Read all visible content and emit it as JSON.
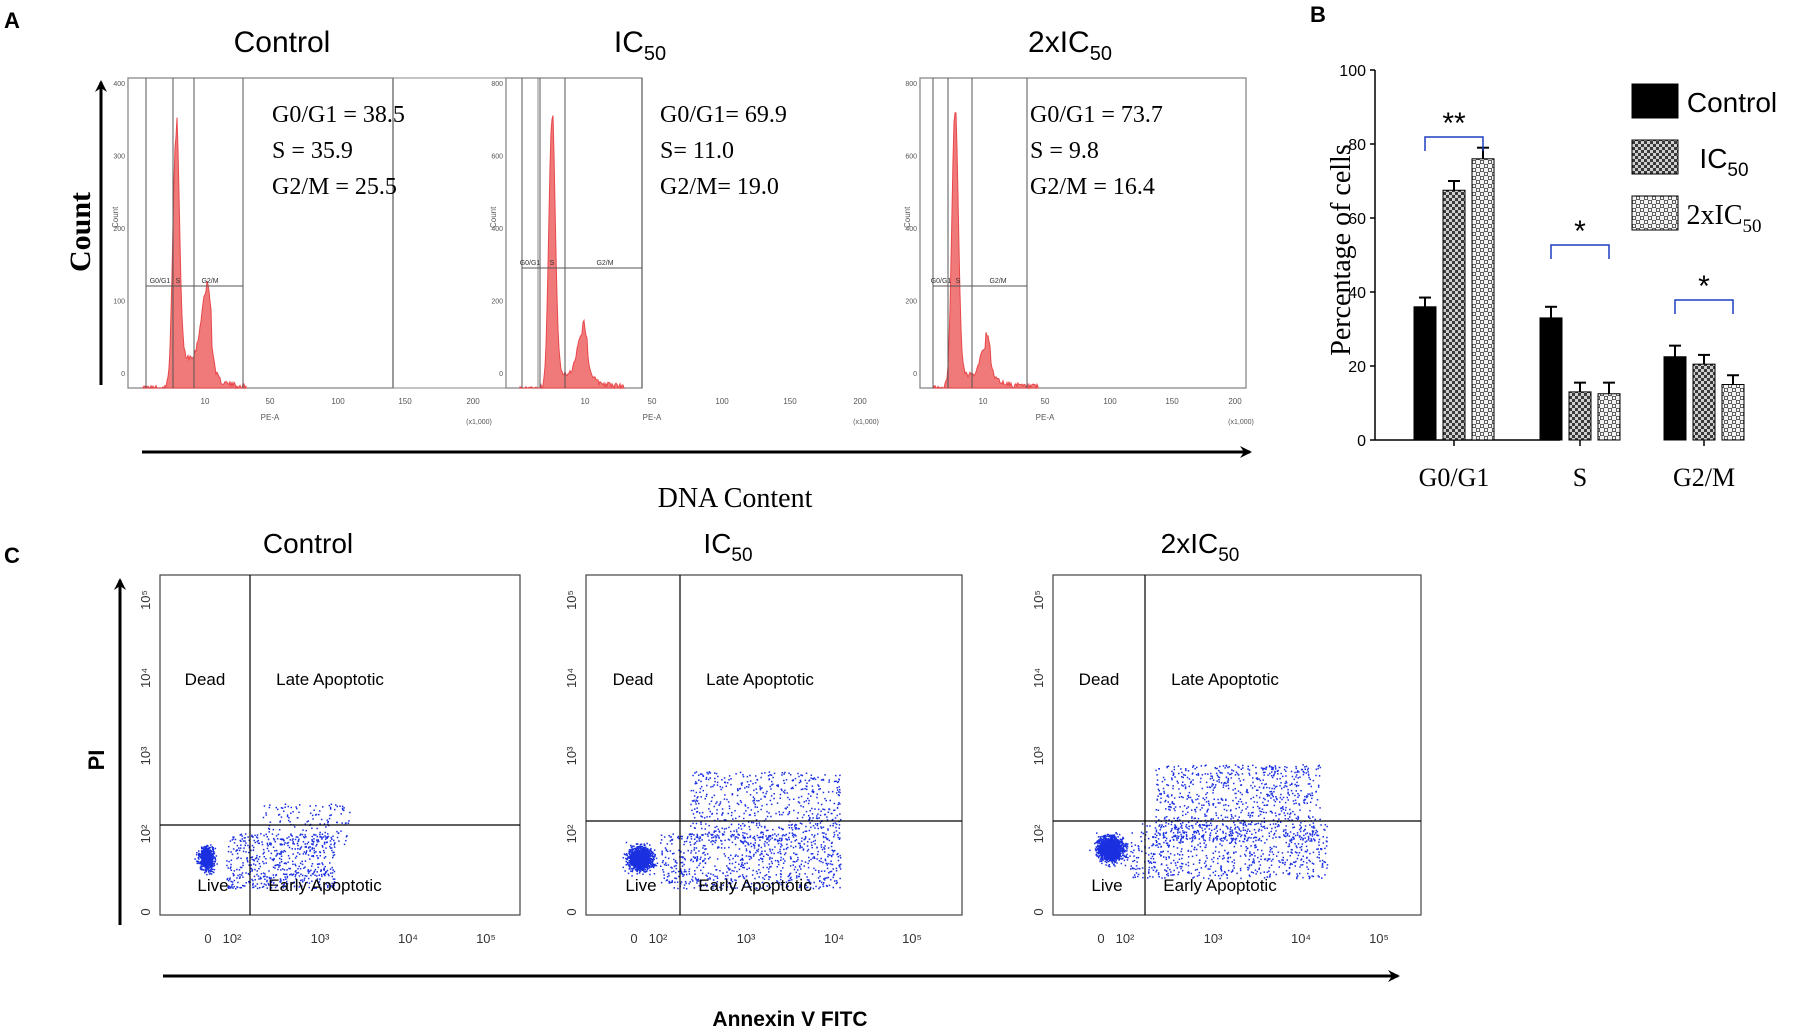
{
  "panels": {
    "a": "A",
    "b": "B",
    "c": "C"
  },
  "colors": {
    "hist": "#e8474a",
    "histFill": "#f07a7a",
    "dots": "#1a2fe0",
    "bar": "#000000",
    "sig": "#1f3fbf"
  },
  "cellcycle": {
    "ylabel": "Count",
    "xlabel": "DNA Content",
    "panels": [
      {
        "title": "Control",
        "sub": "",
        "lines": [
          "G0/G1 = 38.5",
          "S =  35.9",
          "G2/M = 25.5"
        ],
        "ticks": [
          "10",
          "50",
          "100",
          "150",
          "200"
        ],
        "counts": [
          "400",
          "300",
          "200",
          "100",
          "0"
        ]
      },
      {
        "title": "IC",
        "sub": "50",
        "lines": [
          "G0/G1= 69.9",
          "S=  11.0",
          "G2/M= 19.0"
        ],
        "ticks": [
          "10",
          "50",
          "100",
          "150",
          "200"
        ],
        "counts": [
          "800",
          "600",
          "400",
          "200",
          "0"
        ]
      },
      {
        "title": "2xIC",
        "sub": "50",
        "lines": [
          "G0/G1 = 73.7",
          "S =  9.8",
          "G2/M = 16.4"
        ],
        "ticks": [
          "10",
          "50",
          "100",
          "150",
          "200"
        ],
        "counts": [
          "800",
          "600",
          "400",
          "200",
          "0"
        ]
      }
    ],
    "gates": [
      "G0/G1",
      "S",
      "G2/M"
    ],
    "axisLabel": "PE-A",
    "axisUnit": "(x1,000)",
    "countLabel": "Count"
  },
  "chart_data": {
    "type": "bar",
    "title": "",
    "xlabel": "",
    "ylabel": "Percentage of cells",
    "ylim": [
      0,
      100
    ],
    "yticks": [
      "0",
      "20",
      "40",
      "60",
      "80",
      "100"
    ],
    "categories": [
      "G0/G1",
      "S",
      "G2/M"
    ],
    "series": [
      {
        "name": "Control",
        "sub": "",
        "values": [
          36,
          33,
          22.5
        ],
        "errors": [
          2.5,
          3,
          3
        ]
      },
      {
        "name": "IC",
        "sub": "50",
        "values": [
          67.5,
          13,
          20.5
        ],
        "errors": [
          2.5,
          2.5,
          2.5
        ]
      },
      {
        "name": "2xIC",
        "sub": "50",
        "values": [
          76,
          12.5,
          15
        ],
        "errors": [
          3,
          3,
          2.5
        ]
      }
    ],
    "significance": [
      "**",
      "*",
      "*"
    ]
  },
  "apoptosis": {
    "ylabel": "PI",
    "xlabel": "Annexin V FITC",
    "quadrants": [
      "Dead",
      "Late Apoptotic",
      "Live",
      "Early Apoptotic"
    ],
    "panels": [
      {
        "title": "Control",
        "sub": ""
      },
      {
        "title": "IC",
        "sub": "50"
      },
      {
        "title": "2xIC",
        "sub": "50"
      }
    ]
  }
}
